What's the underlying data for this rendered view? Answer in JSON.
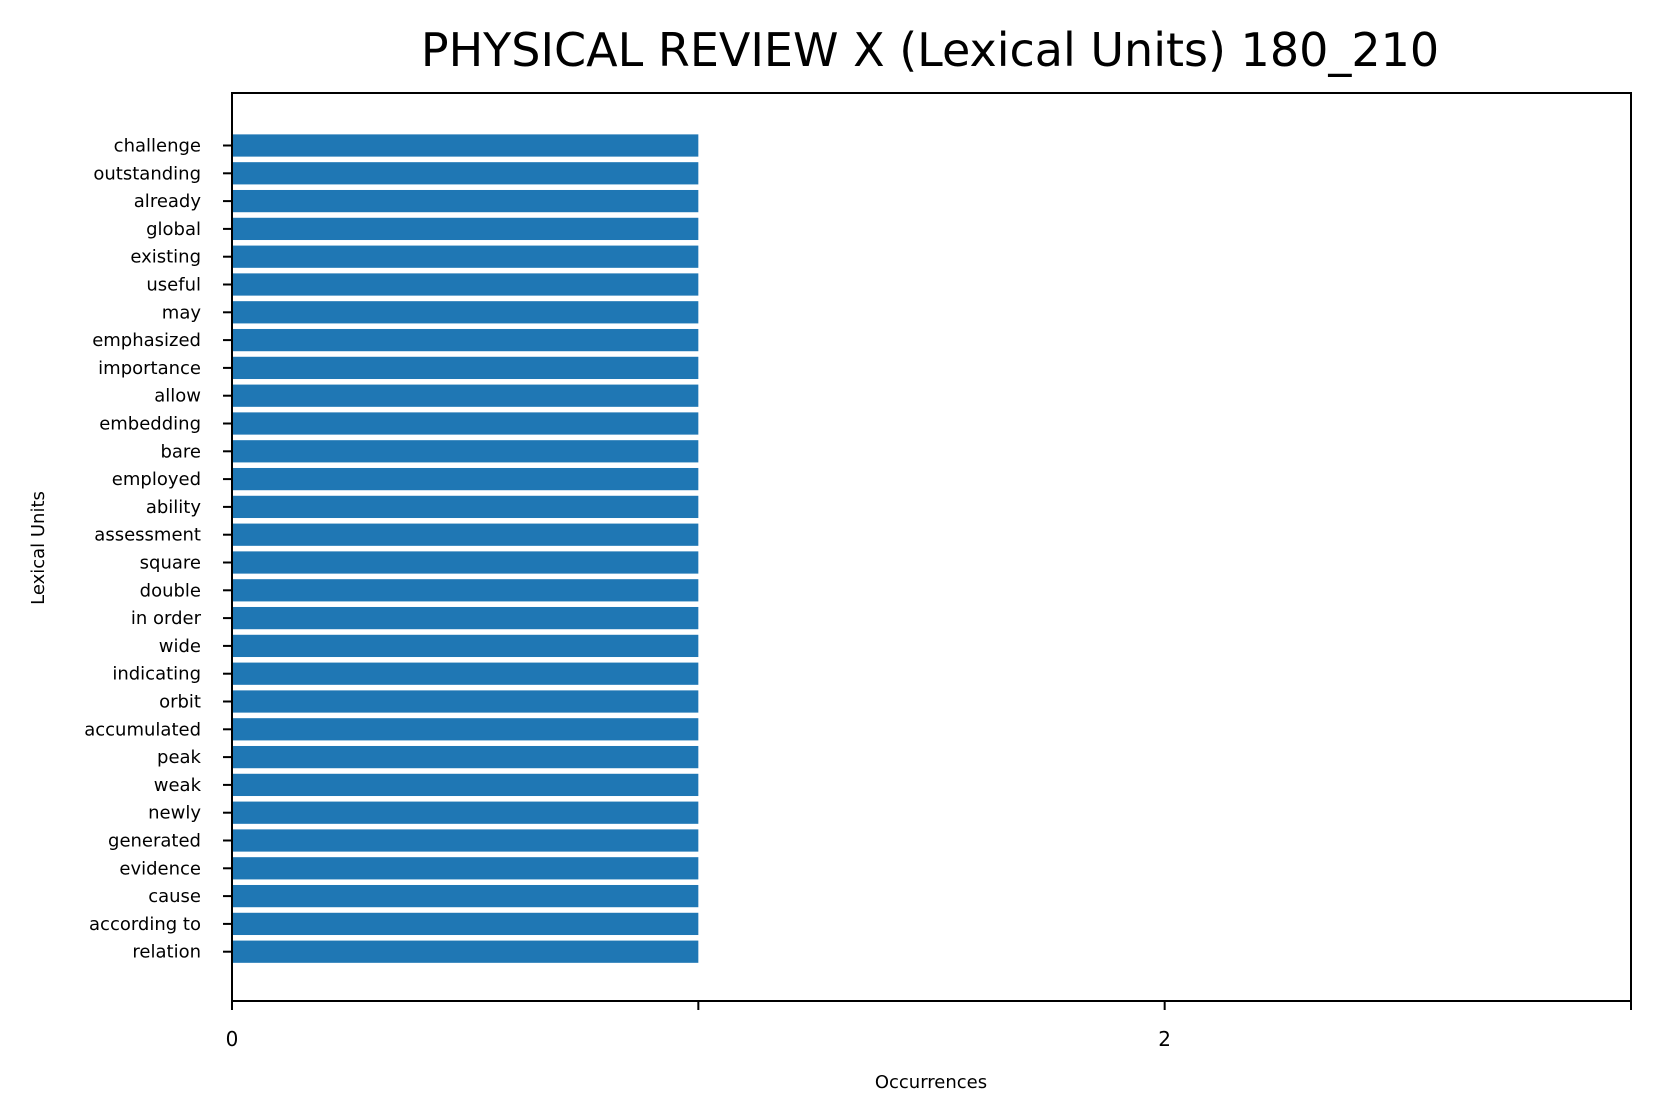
{
  "chart_data": {
    "type": "bar",
    "orientation": "horizontal",
    "title": "PHYSICAL REVIEW X (Lexical Units) 180_210",
    "xlabel": "Occurrences",
    "ylabel": "Lexical Units",
    "categories": [
      "challenge",
      "outstanding",
      "already",
      "global",
      "existing",
      "useful",
      "may",
      "emphasized",
      "importance",
      "allow",
      "embedding",
      "bare",
      "employed",
      "ability",
      "assessment",
      "square",
      "double",
      "in order",
      "wide",
      "indicating",
      "orbit",
      "accumulated",
      "peak",
      "weak",
      "newly",
      "generated",
      "evidence",
      "cause",
      "according to",
      "relation"
    ],
    "values": [
      1,
      1,
      1,
      1,
      1,
      1,
      1,
      1,
      1,
      1,
      1,
      1,
      1,
      1,
      1,
      1,
      1,
      1,
      1,
      1,
      1,
      1,
      1,
      1,
      1,
      1,
      1,
      1,
      1,
      1
    ],
    "xlim": [
      0,
      3
    ],
    "xticks": [
      0,
      1,
      2,
      3
    ],
    "xtick_labels": [
      "0",
      "",
      "2",
      ""
    ],
    "grid": false,
    "bar_color": "#1f77b4"
  }
}
